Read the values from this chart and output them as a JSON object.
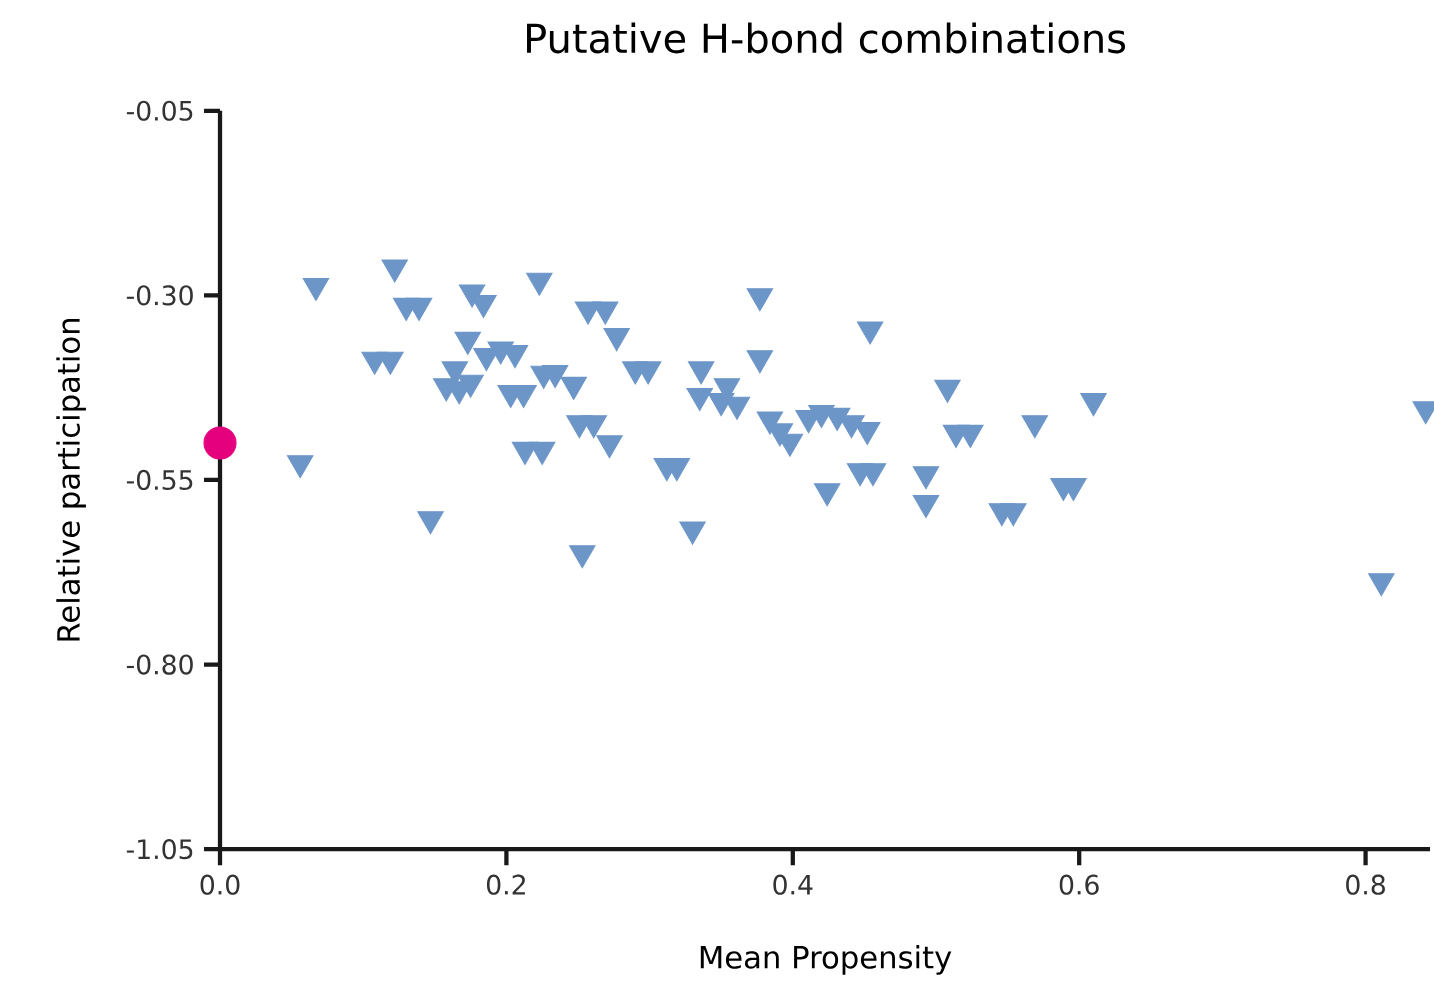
{
  "chart_data": {
    "type": "scatter",
    "title": "Putative H-bond combinations",
    "xlabel": "Mean Propensity",
    "ylabel": "Relative participation",
    "xlim": [
      0,
      0.845
    ],
    "ylim": [
      -1.05,
      -0.05
    ],
    "xticks": [
      {
        "value": 0,
        "label": "0.0"
      },
      0.2,
      0.4,
      0.6,
      0.8
    ],
    "yticks": [
      {
        "value": -1.05,
        "label": "-1.05"
      },
      {
        "value": -0.8,
        "label": "-0.80"
      },
      {
        "value": -0.55,
        "label": "-0.55"
      },
      {
        "value": -0.3,
        "label": "-0.30"
      },
      -0.05
    ],
    "series": [
      {
        "color": "#6d96c8",
        "marker": "triangle",
        "x": [
          0.067,
          0.122,
          0.13,
          0.139,
          0.176,
          0.184,
          0.223,
          0.257,
          0.269,
          0.277,
          0.108,
          0.119,
          0.173,
          0.186,
          0.196,
          0.206,
          0.164,
          0.158,
          0.167,
          0.175,
          0.203,
          0.212,
          0.226,
          0.234,
          0.247,
          0.29,
          0.299,
          0.251,
          0.261,
          0.272,
          0.213,
          0.225,
          0.056,
          0.147,
          0.253,
          0.312,
          0.319,
          0.377,
          0.454,
          0.377,
          0.336,
          0.354,
          0.335,
          0.35,
          0.361,
          0.384,
          0.391,
          0.398,
          0.411,
          0.42,
          0.431,
          0.441,
          0.452,
          0.447,
          0.456,
          0.424,
          0.33,
          0.508,
          0.514,
          0.524,
          0.569,
          0.61,
          0.493,
          0.493,
          0.546,
          0.554,
          0.589,
          0.596,
          0.842,
          0.811
        ],
        "values": [
          -0.287,
          -0.262,
          -0.314,
          -0.314,
          -0.296,
          -0.31,
          -0.28,
          -0.319,
          -0.319,
          -0.355,
          -0.387,
          -0.387,
          -0.36,
          -0.382,
          -0.373,
          -0.378,
          -0.4,
          -0.423,
          -0.427,
          -0.418,
          -0.432,
          -0.432,
          -0.406,
          -0.405,
          -0.421,
          -0.4,
          -0.4,
          -0.473,
          -0.473,
          -0.5,
          -0.509,
          -0.509,
          -0.527,
          -0.603,
          -0.649,
          -0.531,
          -0.531,
          -0.301,
          -0.346,
          -0.385,
          -0.4,
          -0.423,
          -0.436,
          -0.443,
          -0.448,
          -0.468,
          -0.484,
          -0.498,
          -0.466,
          -0.459,
          -0.463,
          -0.473,
          -0.482,
          -0.538,
          -0.538,
          -0.565,
          -0.617,
          -0.425,
          -0.486,
          -0.486,
          -0.473,
          -0.443,
          -0.542,
          -0.581,
          -0.592,
          -0.592,
          -0.558,
          -0.558,
          -0.454,
          -0.687
        ]
      },
      {
        "color": "#e5007d",
        "marker": "circle",
        "x": [
          0
        ],
        "values": [
          -0.5
        ]
      }
    ]
  }
}
